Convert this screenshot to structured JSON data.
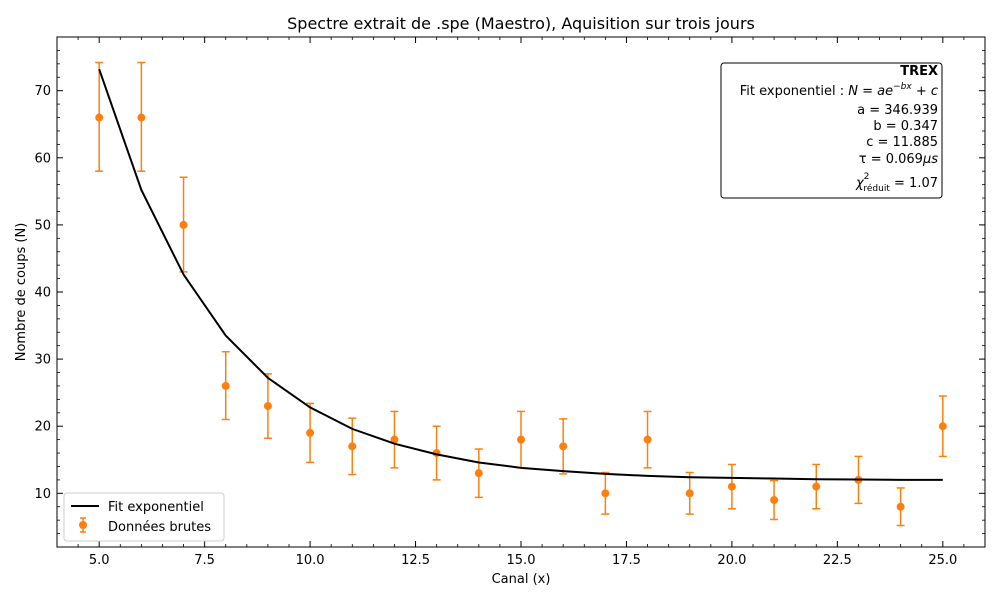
{
  "chart_data": {
    "type": "scatter",
    "title": "Spectre extrait de .spe (Maestro), Aquisition sur trois jours",
    "xlabel": "Canal (x)",
    "ylabel": "Nombre de coups (N)",
    "xlim": [
      4,
      26
    ],
    "ylim": [
      2,
      78
    ],
    "xticks": [
      5.0,
      7.5,
      10.0,
      12.5,
      15.0,
      17.5,
      20.0,
      22.5,
      25.0
    ],
    "xtick_labels": [
      "5.0",
      "7.5",
      "10.0",
      "12.5",
      "15.0",
      "17.5",
      "20.0",
      "22.5",
      "25.0"
    ],
    "yticks": [
      10,
      20,
      30,
      40,
      50,
      60,
      70
    ],
    "ytick_labels": [
      "10",
      "20",
      "30",
      "40",
      "50",
      "60",
      "70"
    ],
    "grid": false,
    "legend_position": "bottom-left",
    "series": [
      {
        "name": "Fit exponentiel",
        "kind": "line",
        "color": "#000000",
        "x": [
          5,
          6,
          7,
          8,
          9,
          10,
          11,
          12,
          13,
          14,
          15,
          16,
          17,
          18,
          19,
          20,
          21,
          22,
          23,
          24,
          25
        ],
        "y": [
          73.2,
          55.2,
          42.6,
          33.5,
          27.2,
          22.8,
          19.6,
          17.4,
          15.8,
          14.6,
          13.8,
          13.3,
          12.9,
          12.6,
          12.4,
          12.3,
          12.2,
          12.1,
          12.05,
          12.0,
          12.0
        ]
      },
      {
        "name": "Données brutes",
        "kind": "errorbar",
        "color": "#ff7f0e",
        "x": [
          5,
          6,
          7,
          8,
          9,
          10,
          11,
          12,
          13,
          14,
          15,
          16,
          17,
          18,
          19,
          20,
          21,
          22,
          23,
          24,
          25
        ],
        "y": [
          66,
          66,
          50,
          26,
          23,
          19,
          17,
          18,
          16,
          13,
          18,
          17,
          10,
          18,
          10,
          11,
          9,
          11,
          12,
          8,
          20
        ],
        "yerr_low": [
          58,
          58,
          43,
          21,
          18.2,
          14.6,
          12.8,
          13.8,
          12,
          9.4,
          13.8,
          12.9,
          6.9,
          13.8,
          6.9,
          7.7,
          6.1,
          7.7,
          8.5,
          5.2,
          15.5
        ],
        "yerr_high": [
          74.2,
          74.2,
          57.1,
          31.1,
          27.8,
          23.4,
          21.2,
          22.2,
          20,
          16.6,
          22.2,
          21.1,
          13.1,
          22.2,
          13.1,
          14.3,
          11.9,
          14.3,
          15.5,
          10.8,
          24.5
        ]
      }
    ],
    "fit_box": {
      "title": "TREX",
      "model_label": "Fit exponentiel : ",
      "model_formula": "N = ae",
      "model_exponent": "−bx",
      "model_tail": " + c",
      "a_line": "a = 346.939",
      "b_line": "b = 0.347",
      "c_line": "c = 11.885",
      "tau_prefix": "τ = 0.069",
      "tau_unit": "μs",
      "chi_symbol": "χ",
      "chi_sup": "2",
      "chi_sub": "réduit",
      "chi_value": " = 1.07"
    }
  }
}
